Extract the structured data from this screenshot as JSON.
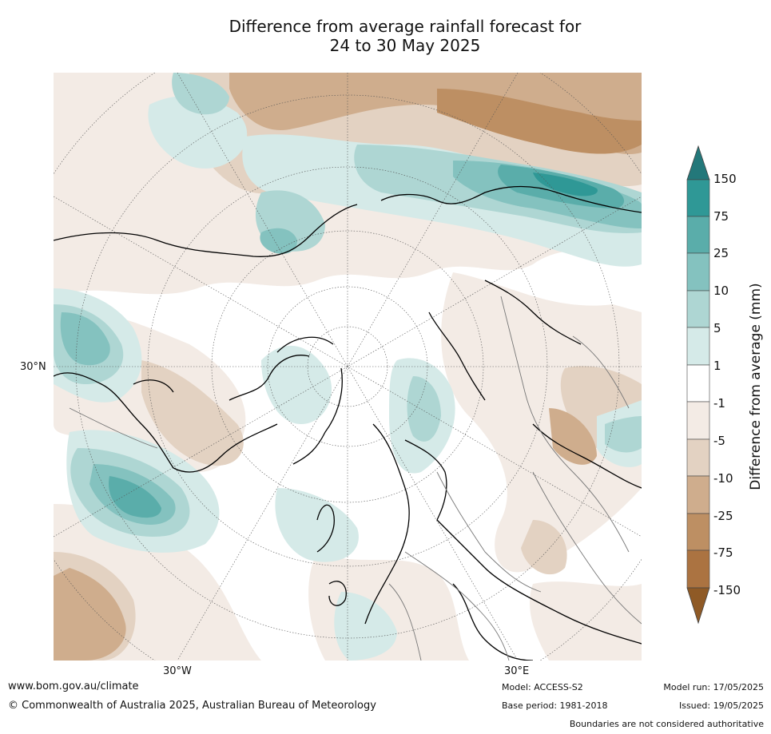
{
  "title_line1": "Difference from average rainfall forecast for",
  "title_line2": "24 to 30 May 2025",
  "axis_labels": {
    "lat_30n": "30°N",
    "lon_30w": "30°W",
    "lon_30e": "30°E"
  },
  "colorbar": {
    "title": "Difference from average (mm)",
    "ticks": [
      "150",
      "75",
      "25",
      "10",
      "5",
      "1",
      "-1",
      "-5",
      "-10",
      "-25",
      "-75",
      "-150"
    ],
    "colors": {
      "wet_extreme": "#23787a",
      "wet_150": "#2f9896",
      "wet_75": "#5aadaa",
      "wet_25": "#84c2bf",
      "wet_10": "#aed6d3",
      "wet_5": "#d5eae8",
      "neutral": "#ffffff",
      "dry_1": "#f3ebe5",
      "dry_5": "#e3d2c2",
      "dry_10": "#cfad8d",
      "dry_25": "#bd8f63",
      "dry_75": "#ab7341",
      "dry_extreme": "#8f5a26"
    }
  },
  "footer": {
    "website": "www.bom.gov.au/climate",
    "copyright": "© Commonwealth of Australia 2025, Australian Bureau of Meteorology",
    "model": "Model: ACCESS-S2",
    "base_period": "Base period: 1981-2018",
    "model_run": "Model run: 17/05/2025",
    "issued": "Issued: 19/05/2025",
    "disclaimer": "Boundaries are not considered authoritative"
  }
}
